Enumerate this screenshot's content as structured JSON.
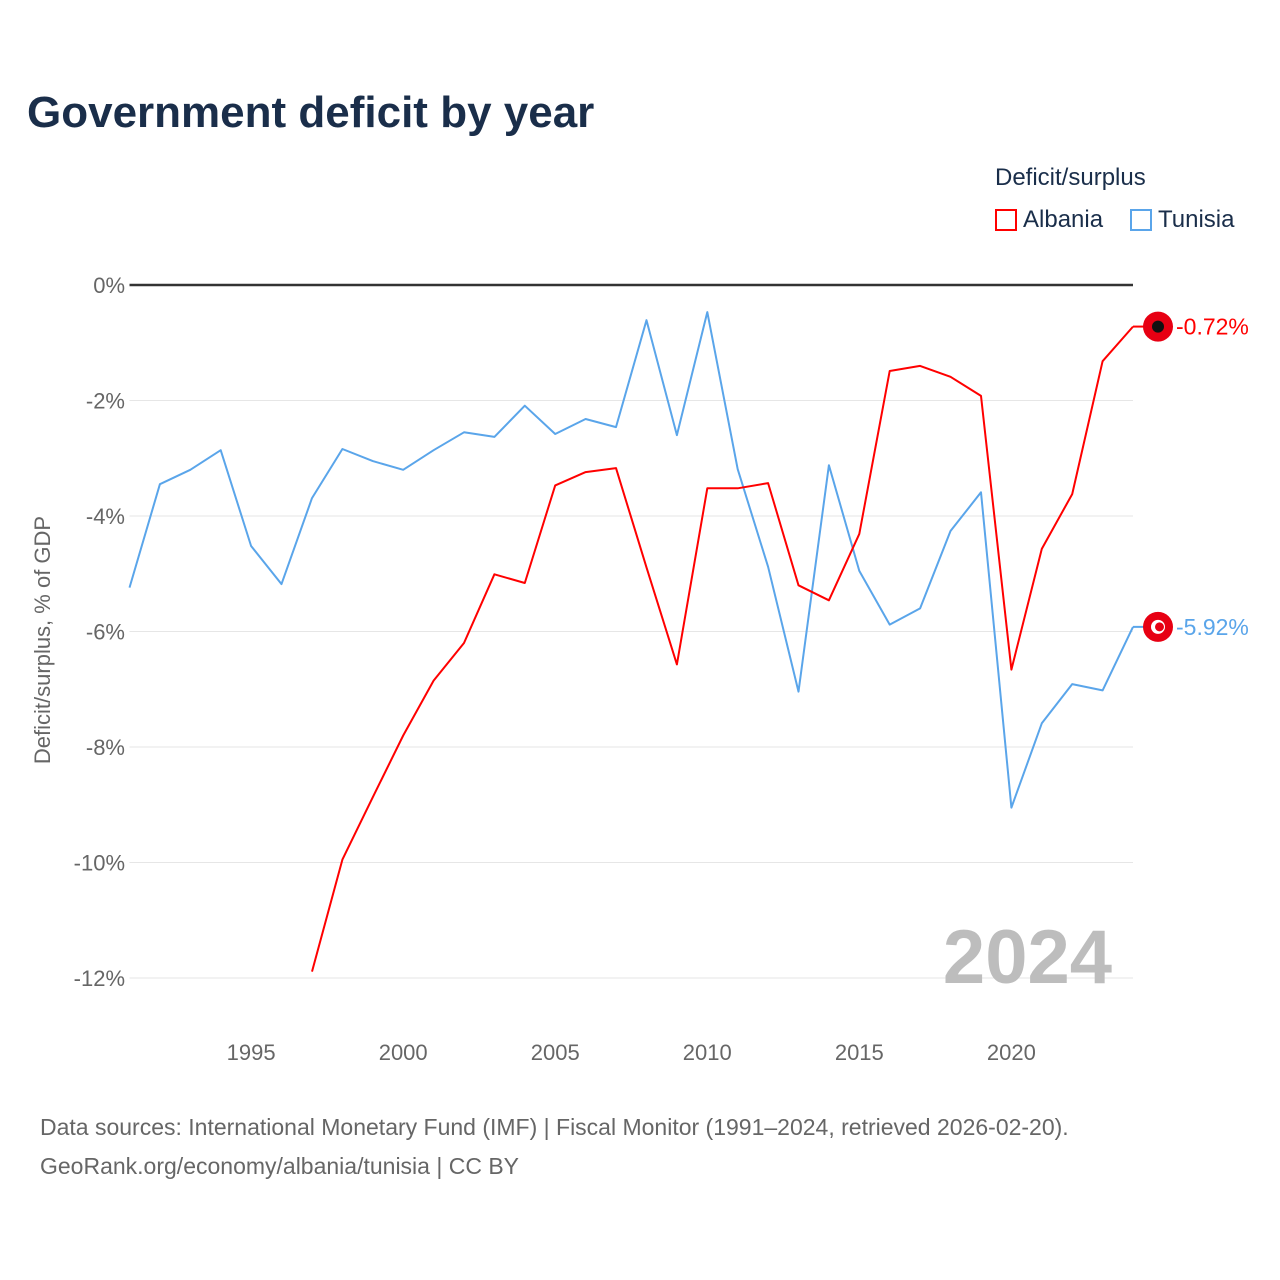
{
  "title": "Government deficit by year",
  "legend": {
    "title": "Deficit/surplus",
    "items": [
      {
        "name": "Albania",
        "color": "#ff0000"
      },
      {
        "name": "Tunisia",
        "color": "#5aa5ea"
      }
    ]
  },
  "sources": {
    "line1": "Data sources: International Monetary Fund (IMF) | Fiscal Monitor (1991–2024, retrieved 2026-02-20).",
    "line2": "GeoRank.org/economy/albania/tunisia | CC BY"
  },
  "chart_data": {
    "type": "line",
    "title": "Government deficit by year",
    "ylabel": "Deficit/surplus, % of GDP",
    "xlabel": "",
    "year_watermark": "2024",
    "ylim": [
      -13,
      0
    ],
    "xlim": [
      1991,
      2024
    ],
    "yticks": [
      0,
      -2,
      -4,
      -6,
      -8,
      -10,
      -12
    ],
    "ytick_labels": [
      "0%",
      "-2%",
      "-4%",
      "-6%",
      "-8%",
      "-10%",
      "-12%"
    ],
    "xticks": [
      1995,
      2000,
      2005,
      2010,
      2015,
      2020
    ],
    "xtick_labels": [
      "1995",
      "2000",
      "2005",
      "2010",
      "2015",
      "2020"
    ],
    "series": [
      {
        "name": "Albania",
        "color": "#ff0000",
        "end_label": "-0.72%",
        "x": [
          1997,
          1998,
          1999,
          2000,
          2001,
          2002,
          2003,
          2004,
          2005,
          2006,
          2007,
          2008,
          2009,
          2010,
          2011,
          2012,
          2013,
          2014,
          2015,
          2016,
          2017,
          2018,
          2019,
          2020,
          2021,
          2022,
          2023,
          2024
        ],
        "values": [
          -11.89,
          -9.95,
          -8.87,
          -7.8,
          -6.85,
          -6.2,
          -5.01,
          -5.16,
          -3.47,
          -3.24,
          -3.17,
          -4.89,
          -6.57,
          -3.52,
          -3.52,
          -3.43,
          -5.2,
          -5.46,
          -4.31,
          -1.49,
          -1.4,
          -1.59,
          -1.92,
          -6.66,
          -4.57,
          -3.62,
          -1.32,
          -0.72
        ]
      },
      {
        "name": "Tunisia",
        "color": "#5aa5ea",
        "end_label": "-5.92%",
        "x": [
          1991,
          1992,
          1993,
          1994,
          1995,
          1996,
          1997,
          1998,
          1999,
          2000,
          2001,
          2002,
          2003,
          2004,
          2005,
          2006,
          2007,
          2008,
          2009,
          2010,
          2011,
          2012,
          2013,
          2014,
          2015,
          2016,
          2017,
          2018,
          2019,
          2020,
          2021,
          2022,
          2023,
          2024
        ],
        "values": [
          -5.24,
          -3.45,
          -3.2,
          -2.86,
          -4.52,
          -5.18,
          -3.69,
          -2.84,
          -3.05,
          -3.2,
          -2.86,
          -2.55,
          -2.63,
          -2.09,
          -2.58,
          -2.32,
          -2.46,
          -0.61,
          -2.6,
          -0.47,
          -3.19,
          -4.88,
          -7.04,
          -3.12,
          -4.95,
          -5.88,
          -5.6,
          -4.26,
          -3.59,
          -9.05,
          -7.59,
          -6.91,
          -7.02,
          -5.92
        ]
      }
    ]
  }
}
